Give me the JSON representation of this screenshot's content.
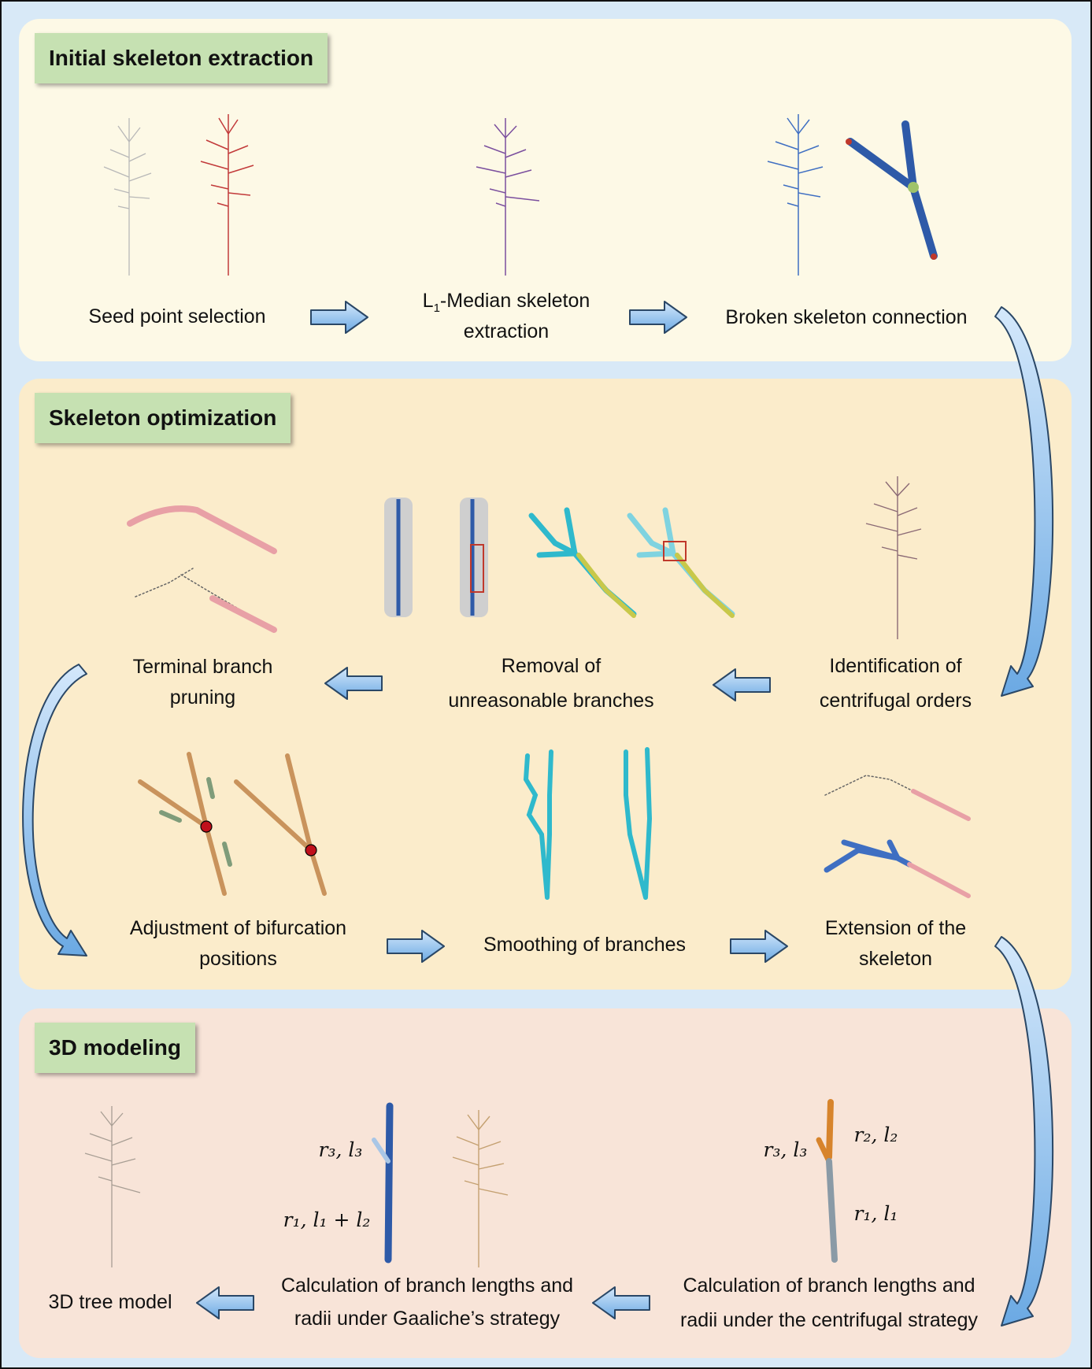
{
  "sections": {
    "initial": {
      "title": "Initial skeleton extraction",
      "steps": {
        "seed": "Seed point selection",
        "median_pre": "L",
        "median_sub": "1",
        "median_rest": "-Median skeleton",
        "median_line2": "extraction",
        "broken": "Broken skeleton connection"
      }
    },
    "optimization": {
      "title": "Skeleton optimization",
      "steps": {
        "terminal_1": "Terminal branch",
        "terminal_2": "pruning",
        "removal_1": "Removal of",
        "removal_2": "unreasonable branches",
        "ident_1": "Identification of",
        "ident_2": "centrifugal orders",
        "adjust_1": "Adjustment of bifurcation",
        "adjust_2": "positions",
        "smooth": "Smoothing of branches",
        "extend_1": "Extension of the",
        "extend_2": "skeleton"
      }
    },
    "modeling": {
      "title": "3D modeling",
      "steps": {
        "model": "3D tree model",
        "gaaliche_1": "Calculation of branch lengths and",
        "gaaliche_2": "radii under Gaaliche’s strategy",
        "centrifugal_1": "Calculation of branch lengths and",
        "centrifugal_2": "radii under the centrifugal strategy"
      },
      "math_labels": {
        "g_r3": "r₃, l₃",
        "g_r1": "r₁, l₁ + l₂",
        "c_r3": "r₃, l₃",
        "c_r2": "r₂, l₂",
        "c_r1": "r₁, l₁"
      }
    }
  },
  "colors": {
    "border": "#111111",
    "background": "#d8e9f7",
    "panel1": "#fdf9e6",
    "panel2": "#fbeccb",
    "panel3": "#f8e4d8",
    "title_bg": "#c6e1b2",
    "arrow_fill": "#8fc2ee",
    "arrow_stroke": "#2a4766"
  }
}
